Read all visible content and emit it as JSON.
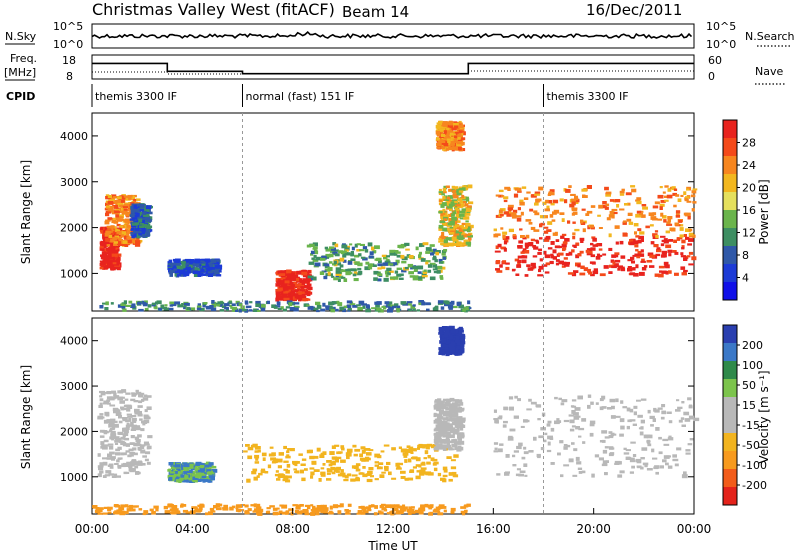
{
  "header": {
    "radar": "Christmas Valley West (fitACF)",
    "beam": "Beam 14",
    "date": "16/Dec/2011"
  },
  "strips": {
    "nsky": {
      "label": "N.Sky",
      "tick_top": "10^5",
      "tick_bottom": "10^0"
    },
    "nsearch": {
      "label": "N.Search",
      "tick_top": "10^5",
      "tick_bottom": "10^0"
    },
    "freq": {
      "label": "Freq.",
      "unit": "[MHz]",
      "tick_top": "18",
      "tick_bottom": "8"
    },
    "nave": {
      "label": "Nave",
      "tick_top": "60",
      "tick_bottom": "0"
    },
    "cpid": {
      "label": "CPID",
      "segments": [
        {
          "start_hour": 0,
          "end_hour": 6,
          "text": "themis 3300 IF"
        },
        {
          "start_hour": 6,
          "end_hour": 18,
          "text": "normal (fast) 151 IF"
        },
        {
          "start_hour": 18,
          "end_hour": 24,
          "text": "themis 3300 IF"
        }
      ]
    }
  },
  "power_panel": {
    "ylabel": "Slant Range [km]",
    "colorbar_label": "Power [dB]",
    "colorbar_ticks": [
      "28",
      "24",
      "20",
      "16",
      "12",
      "8",
      "4"
    ],
    "colorbar_colors": [
      "#e8231e",
      "#f44a1a",
      "#f7861f",
      "#f2b71f",
      "#e5e05d",
      "#6ab44b",
      "#3d8e62",
      "#2f58a8",
      "#1c3bd6",
      "#1010e8"
    ]
  },
  "velocity_panel": {
    "ylabel": "Slant Range [km]",
    "colorbar_label": "Velocity [m s⁻¹]",
    "colorbar_ticks": [
      "200",
      "100",
      "50",
      "15",
      "-15",
      "-50",
      "-100",
      "-200"
    ],
    "colorbar_colors": [
      "#2a3fb0",
      "#3b78c7",
      "#2f8a4a",
      "#7cc44c",
      "#b8b8b8",
      "#b8b8b8",
      "#f2b41f",
      "#f79a1e",
      "#f25c1a",
      "#e4231b"
    ]
  },
  "xaxis": {
    "label": "Time UT",
    "ticks": [
      "00:00",
      "04:00",
      "08:00",
      "12:00",
      "16:00",
      "20:00",
      "00:00"
    ]
  },
  "chart_data": {
    "type": "heatmap",
    "x_range_hours": [
      0,
      24
    ],
    "y_range_km": [
      180,
      4500
    ],
    "y_ticks": [
      1000,
      2000,
      3000,
      4000
    ],
    "freq_mhz_steps": [
      {
        "from": 0,
        "to": 3,
        "value": 14.5
      },
      {
        "from": 3,
        "to": 6,
        "value": 11.2
      },
      {
        "from": 6,
        "to": 15,
        "value": 10.2
      },
      {
        "from": 15,
        "to": 24,
        "value": 14.5
      }
    ],
    "power_regions": [
      {
        "t": [
          0.3,
          1.0
        ],
        "r": [
          1100,
          2000
        ],
        "db": 28
      },
      {
        "t": [
          0.5,
          1.8
        ],
        "r": [
          1600,
          2700
        ],
        "db": 20
      },
      {
        "t": [
          1.5,
          2.2
        ],
        "r": [
          1800,
          2500
        ],
        "db": 8
      },
      {
        "t": [
          3.0,
          5.0
        ],
        "r": [
          950,
          1300
        ],
        "db": 6
      },
      {
        "t": [
          7.3,
          8.6
        ],
        "r": [
          420,
          1050
        ],
        "db": 28
      },
      {
        "t": [
          8.5,
          14.0
        ],
        "r": [
          850,
          1650
        ],
        "db": 12
      },
      {
        "t": [
          13.8,
          15.0
        ],
        "r": [
          1600,
          2900
        ],
        "db": 16
      },
      {
        "t": [
          13.7,
          14.7
        ],
        "r": [
          3700,
          4300
        ],
        "db": 20
      },
      {
        "t": [
          16.0,
          24.0
        ],
        "r": [
          950,
          1800
        ],
        "db": 28
      },
      {
        "t": [
          16.0,
          24.0
        ],
        "r": [
          1800,
          2900
        ],
        "db": 20
      },
      {
        "t": [
          0.0,
          15.0
        ],
        "r": [
          180,
          380
        ],
        "db": 10
      }
    ],
    "velocity_regions": [
      {
        "t": [
          0.2,
          2.2
        ],
        "r": [
          1000,
          2900
        ],
        "v": 0
      },
      {
        "t": [
          3.0,
          4.8
        ],
        "r": [
          900,
          1300
        ],
        "v": 60
      },
      {
        "t": [
          6.0,
          14.5
        ],
        "r": [
          900,
          1700
        ],
        "v": -60
      },
      {
        "t": [
          13.6,
          14.7
        ],
        "r": [
          1600,
          2700
        ],
        "v": -20
      },
      {
        "t": [
          13.8,
          14.7
        ],
        "r": [
          3700,
          4300
        ],
        "v": 150
      },
      {
        "t": [
          16.0,
          24.0
        ],
        "r": [
          1000,
          2800
        ],
        "v": 0
      },
      {
        "t": [
          0.0,
          15.0
        ],
        "r": [
          180,
          380
        ],
        "v": -80
      }
    ]
  }
}
